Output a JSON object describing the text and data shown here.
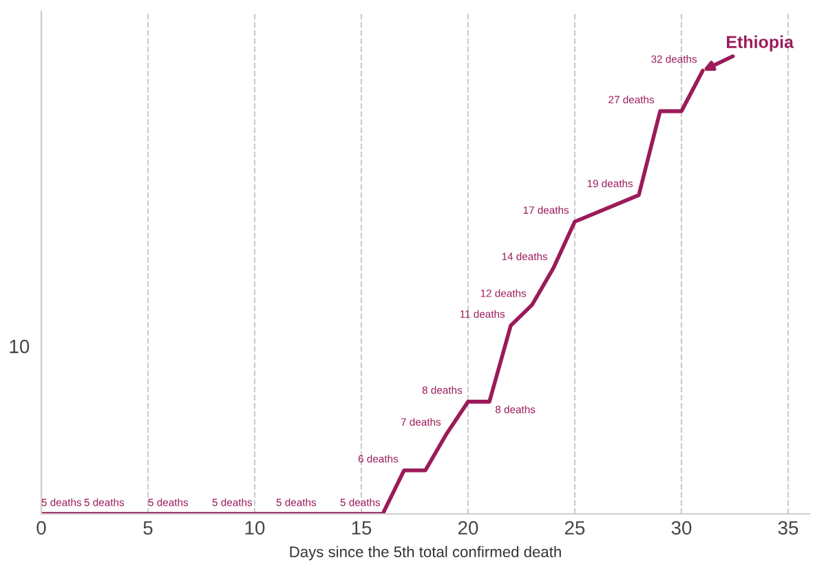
{
  "chart_data": {
    "type": "line",
    "xlabel": "Days since the 5th total confirmed death",
    "x": [
      0,
      2,
      5,
      8,
      11,
      14,
      16,
      17,
      18,
      19,
      20,
      21,
      22,
      23,
      24,
      25,
      28,
      29,
      30,
      31
    ],
    "series": [
      {
        "name": "Ethiopia",
        "color": "#9b1b5a",
        "values": [
          5,
          5,
          5,
          5,
          5,
          5,
          5,
          6,
          6,
          7,
          8,
          8,
          11,
          12,
          14,
          17,
          19,
          27,
          27,
          32
        ],
        "value_labels": [
          "5 deaths",
          "5 deaths",
          "5 deaths",
          "5 deaths",
          "5 deaths",
          "5 deaths",
          null,
          "6 deaths",
          null,
          "7 deaths",
          "8 deaths",
          "8 deaths",
          "11 deaths",
          "12 deaths",
          "14 deaths",
          "17 deaths",
          "19 deaths",
          "27 deaths",
          null,
          "32 deaths"
        ]
      }
    ],
    "log": true,
    "xlim": [
      0,
      36
    ],
    "xticks": [
      0,
      5,
      10,
      15,
      20,
      25,
      30,
      35
    ],
    "ylim": [
      5,
      41
    ],
    "annotations": [
      "10"
    ],
    "grid": "x",
    "legend": false,
    "line_style": "solid",
    "marker": "none"
  }
}
